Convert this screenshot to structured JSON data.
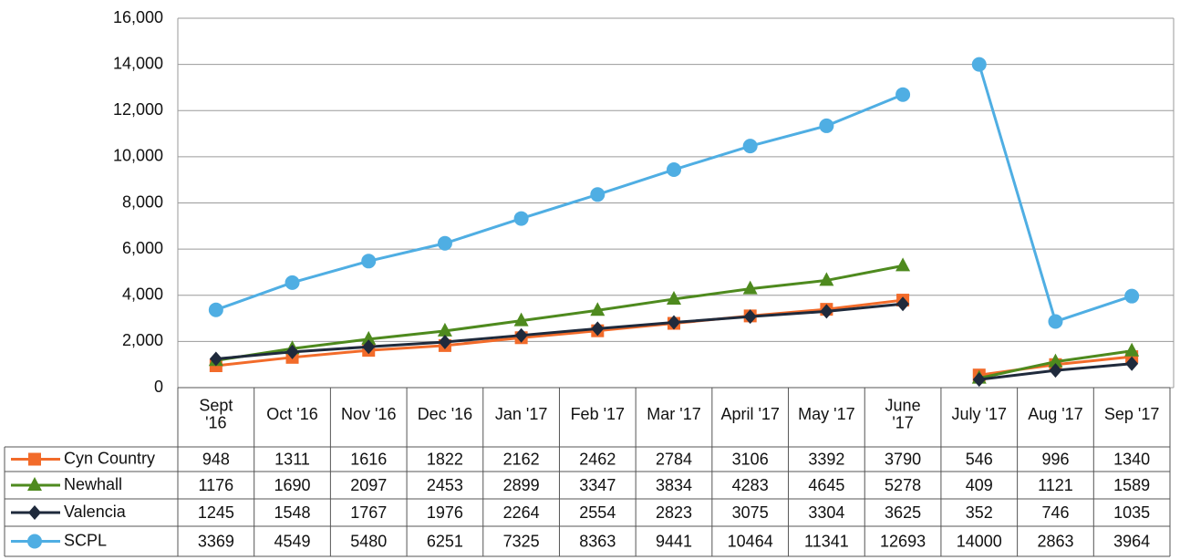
{
  "chart_data": {
    "type": "line",
    "categories": [
      "Sept\n'16",
      "Oct '16",
      "Nov '16",
      "Dec '16",
      "Jan '17",
      "Feb '17",
      "Mar '17",
      "April '17",
      "May '17",
      "June\n'17",
      "July '17",
      "Aug '17",
      "Sep '17"
    ],
    "series": [
      {
        "name": "Cyn Country",
        "color": "#f26b2a",
        "marker": "square",
        "values": [
          948,
          1311,
          1616,
          1822,
          2162,
          2462,
          2784,
          3106,
          3392,
          3790,
          546,
          996,
          1340
        ]
      },
      {
        "name": "Newhall",
        "color": "#4e8a1e",
        "marker": "triangle",
        "values": [
          1176,
          1690,
          2097,
          2453,
          2899,
          3347,
          3834,
          4283,
          4645,
          5278,
          409,
          1121,
          1589
        ]
      },
      {
        "name": "Valencia",
        "color": "#1f2a3c",
        "marker": "diamond",
        "values": [
          1245,
          1548,
          1767,
          1976,
          2264,
          2554,
          2823,
          3075,
          3304,
          3625,
          352,
          746,
          1035
        ]
      },
      {
        "name": "SCPL",
        "color": "#4faee3",
        "marker": "circle",
        "values": [
          3369,
          4549,
          5480,
          6251,
          7325,
          8363,
          9441,
          10464,
          11341,
          12693,
          14000,
          2863,
          3964
        ]
      }
    ],
    "line_breaks": [
      10
    ],
    "ylim": [
      0,
      16000
    ],
    "yticks": [
      0,
      {
        "value": 2000,
        "label": "2,000"
      },
      {
        "value": 4000,
        "label": "4,000"
      },
      {
        "value": 6000,
        "label": "6,000"
      },
      {
        "value": 8000,
        "label": "8,000"
      },
      {
        "value": 10000,
        "label": "10,000"
      },
      {
        "value": 12000,
        "label": "12,000"
      },
      {
        "value": 14000,
        "label": "14,000"
      },
      {
        "value": 16000,
        "label": "16,000"
      }
    ],
    "grid": true,
    "data_table": true
  }
}
